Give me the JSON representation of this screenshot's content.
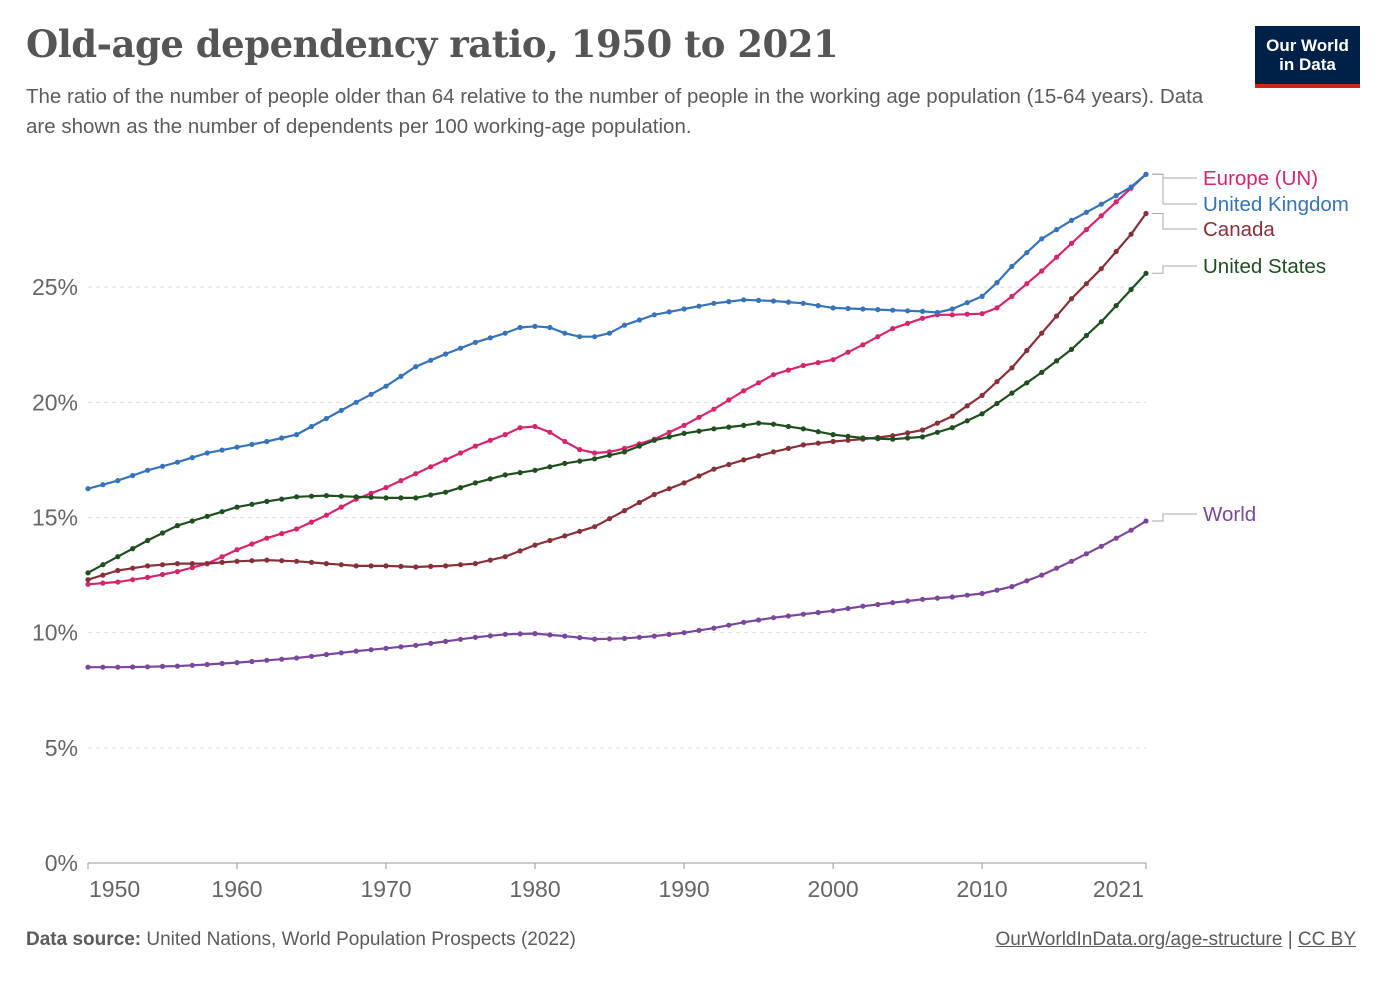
{
  "header": {
    "title": "Old-age dependency ratio, 1950 to 2021",
    "subtitle": "The ratio of the number of people older than 64 relative to the number of people in the working age population (15-64 years). Data are shown as the number of dependents per 100 working-age population.",
    "logo_line1": "Our World",
    "logo_line2": "in Data",
    "logo_bg": "#002147",
    "logo_accent": "#ce261e"
  },
  "footer": {
    "source_label": "Data source:",
    "source_text": "United Nations, World Population Prospects (2022)",
    "link_text": "OurWorldInData.org/age-structure",
    "separator": "|",
    "license": "CC BY"
  },
  "chart_data": {
    "type": "line",
    "xlim": [
      1950,
      2021
    ],
    "ylim": [
      0,
      30
    ],
    "x_ticks": [
      1950,
      1960,
      1970,
      1980,
      1990,
      2000,
      2010,
      2021
    ],
    "y_ticks": [
      0,
      5,
      10,
      15,
      20,
      25
    ],
    "y_tick_labels": [
      "0%",
      "5%",
      "10%",
      "15%",
      "20%",
      "25%"
    ],
    "grid": "horizontal-dashed",
    "legend": "right-end-labels",
    "series": [
      {
        "name": "Europe (UN)",
        "color": "#d6246e",
        "points": [
          [
            1950,
            12.1
          ],
          [
            1952,
            12.2
          ],
          [
            1954,
            12.4
          ],
          [
            1956,
            12.65
          ],
          [
            1958,
            13.0
          ],
          [
            1960,
            13.6
          ],
          [
            1962,
            14.1
          ],
          [
            1964,
            14.5
          ],
          [
            1966,
            15.1
          ],
          [
            1968,
            15.8
          ],
          [
            1970,
            16.3
          ],
          [
            1972,
            16.9
          ],
          [
            1974,
            17.5
          ],
          [
            1976,
            18.1
          ],
          [
            1978,
            18.6
          ],
          [
            1979,
            18.9
          ],
          [
            1980,
            18.95
          ],
          [
            1981,
            18.7
          ],
          [
            1982,
            18.3
          ],
          [
            1983,
            17.95
          ],
          [
            1984,
            17.8
          ],
          [
            1985,
            17.85
          ],
          [
            1986,
            18.0
          ],
          [
            1988,
            18.4
          ],
          [
            1990,
            19.0
          ],
          [
            1992,
            19.7
          ],
          [
            1994,
            20.5
          ],
          [
            1996,
            21.2
          ],
          [
            1998,
            21.6
          ],
          [
            2000,
            21.85
          ],
          [
            2002,
            22.5
          ],
          [
            2004,
            23.2
          ],
          [
            2006,
            23.65
          ],
          [
            2007,
            23.8
          ],
          [
            2008,
            23.8
          ],
          [
            2010,
            23.85
          ],
          [
            2011,
            24.1
          ],
          [
            2012,
            24.6
          ],
          [
            2014,
            25.7
          ],
          [
            2016,
            26.9
          ],
          [
            2018,
            28.1
          ],
          [
            2020,
            29.3
          ],
          [
            2021,
            29.9
          ]
        ]
      },
      {
        "name": "United Kingdom",
        "color": "#3673b8",
        "points": [
          [
            1950,
            16.25
          ],
          [
            1952,
            16.6
          ],
          [
            1954,
            17.05
          ],
          [
            1956,
            17.4
          ],
          [
            1958,
            17.8
          ],
          [
            1960,
            18.05
          ],
          [
            1962,
            18.3
          ],
          [
            1964,
            18.6
          ],
          [
            1966,
            19.3
          ],
          [
            1968,
            20.0
          ],
          [
            1970,
            20.7
          ],
          [
            1972,
            21.55
          ],
          [
            1974,
            22.1
          ],
          [
            1976,
            22.6
          ],
          [
            1978,
            23.0
          ],
          [
            1979,
            23.25
          ],
          [
            1980,
            23.3
          ],
          [
            1981,
            23.25
          ],
          [
            1982,
            23.0
          ],
          [
            1983,
            22.85
          ],
          [
            1984,
            22.85
          ],
          [
            1985,
            23.0
          ],
          [
            1986,
            23.35
          ],
          [
            1988,
            23.8
          ],
          [
            1990,
            24.05
          ],
          [
            1992,
            24.3
          ],
          [
            1994,
            24.45
          ],
          [
            1996,
            24.4
          ],
          [
            1998,
            24.3
          ],
          [
            2000,
            24.1
          ],
          [
            2002,
            24.05
          ],
          [
            2004,
            24.0
          ],
          [
            2006,
            23.95
          ],
          [
            2007,
            23.9
          ],
          [
            2008,
            24.05
          ],
          [
            2010,
            24.6
          ],
          [
            2011,
            25.2
          ],
          [
            2012,
            25.9
          ],
          [
            2014,
            27.1
          ],
          [
            2016,
            27.9
          ],
          [
            2018,
            28.6
          ],
          [
            2020,
            29.35
          ],
          [
            2021,
            29.9
          ]
        ]
      },
      {
        "name": "Canada",
        "color": "#883039",
        "points": [
          [
            1950,
            12.3
          ],
          [
            1952,
            12.7
          ],
          [
            1954,
            12.9
          ],
          [
            1956,
            13.0
          ],
          [
            1958,
            13.0
          ],
          [
            1960,
            13.1
          ],
          [
            1962,
            13.15
          ],
          [
            1964,
            13.1
          ],
          [
            1966,
            13.0
          ],
          [
            1968,
            12.9
          ],
          [
            1970,
            12.9
          ],
          [
            1972,
            12.85
          ],
          [
            1974,
            12.9
          ],
          [
            1976,
            13.0
          ],
          [
            1978,
            13.3
          ],
          [
            1980,
            13.8
          ],
          [
            1982,
            14.2
          ],
          [
            1984,
            14.6
          ],
          [
            1986,
            15.3
          ],
          [
            1988,
            16.0
          ],
          [
            1990,
            16.5
          ],
          [
            1992,
            17.1
          ],
          [
            1994,
            17.5
          ],
          [
            1996,
            17.85
          ],
          [
            1998,
            18.15
          ],
          [
            2000,
            18.3
          ],
          [
            2002,
            18.4
          ],
          [
            2004,
            18.55
          ],
          [
            2006,
            18.8
          ],
          [
            2008,
            19.4
          ],
          [
            2010,
            20.3
          ],
          [
            2012,
            21.5
          ],
          [
            2014,
            23.0
          ],
          [
            2016,
            24.5
          ],
          [
            2018,
            25.8
          ],
          [
            2020,
            27.3
          ],
          [
            2021,
            28.2
          ]
        ]
      },
      {
        "name": "United States",
        "color": "#1f4e1f",
        "points": [
          [
            1950,
            12.6
          ],
          [
            1952,
            13.3
          ],
          [
            1954,
            14.0
          ],
          [
            1956,
            14.65
          ],
          [
            1958,
            15.05
          ],
          [
            1960,
            15.45
          ],
          [
            1962,
            15.7
          ],
          [
            1964,
            15.9
          ],
          [
            1966,
            15.95
          ],
          [
            1968,
            15.9
          ],
          [
            1970,
            15.85
          ],
          [
            1972,
            15.85
          ],
          [
            1974,
            16.1
          ],
          [
            1976,
            16.5
          ],
          [
            1978,
            16.85
          ],
          [
            1980,
            17.05
          ],
          [
            1982,
            17.35
          ],
          [
            1984,
            17.55
          ],
          [
            1986,
            17.85
          ],
          [
            1988,
            18.35
          ],
          [
            1990,
            18.65
          ],
          [
            1992,
            18.85
          ],
          [
            1994,
            19.0
          ],
          [
            1995,
            19.1
          ],
          [
            1996,
            19.05
          ],
          [
            1998,
            18.85
          ],
          [
            2000,
            18.6
          ],
          [
            2002,
            18.45
          ],
          [
            2004,
            18.4
          ],
          [
            2006,
            18.5
          ],
          [
            2008,
            18.9
          ],
          [
            2010,
            19.5
          ],
          [
            2012,
            20.4
          ],
          [
            2014,
            21.3
          ],
          [
            2016,
            22.3
          ],
          [
            2018,
            23.5
          ],
          [
            2020,
            24.9
          ],
          [
            2021,
            25.6
          ]
        ]
      },
      {
        "name": "World",
        "color": "#7a479a",
        "points": [
          [
            1950,
            8.5
          ],
          [
            1952,
            8.5
          ],
          [
            1954,
            8.52
          ],
          [
            1956,
            8.55
          ],
          [
            1958,
            8.62
          ],
          [
            1960,
            8.7
          ],
          [
            1962,
            8.8
          ],
          [
            1964,
            8.9
          ],
          [
            1966,
            9.05
          ],
          [
            1968,
            9.2
          ],
          [
            1970,
            9.32
          ],
          [
            1972,
            9.45
          ],
          [
            1974,
            9.62
          ],
          [
            1976,
            9.8
          ],
          [
            1978,
            9.93
          ],
          [
            1980,
            9.96
          ],
          [
            1982,
            9.85
          ],
          [
            1984,
            9.72
          ],
          [
            1986,
            9.75
          ],
          [
            1988,
            9.85
          ],
          [
            1990,
            10.0
          ],
          [
            1992,
            10.2
          ],
          [
            1994,
            10.45
          ],
          [
            1996,
            10.65
          ],
          [
            1998,
            10.8
          ],
          [
            2000,
            10.95
          ],
          [
            2002,
            11.15
          ],
          [
            2004,
            11.3
          ],
          [
            2006,
            11.45
          ],
          [
            2008,
            11.55
          ],
          [
            2010,
            11.7
          ],
          [
            2012,
            12.0
          ],
          [
            2014,
            12.5
          ],
          [
            2016,
            13.1
          ],
          [
            2018,
            13.75
          ],
          [
            2020,
            14.45
          ],
          [
            2021,
            14.85
          ]
        ]
      }
    ]
  }
}
